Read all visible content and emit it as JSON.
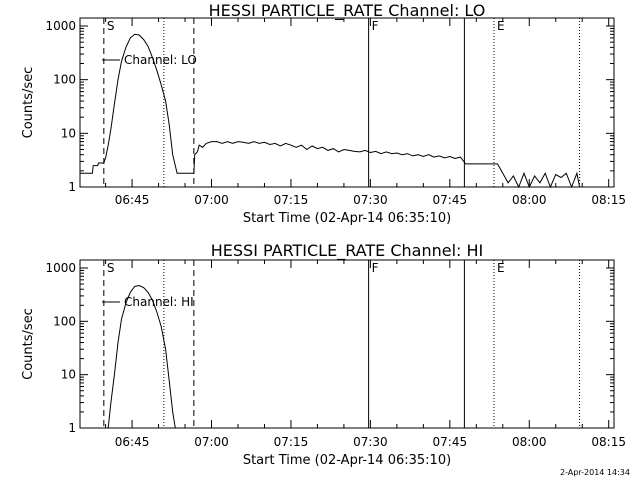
{
  "chart_data": [
    {
      "type": "line",
      "title": "HESSI PARTICLE_RATE Channel: LO",
      "xlabel": "Start Time (02-Apr-14 06:35:10)",
      "ylabel": "Counts/sec",
      "yscale": "log",
      "ylim": [
        1,
        1000
      ],
      "xlim": [
        "06:35:10",
        "08:16:00"
      ],
      "x_ticks": [
        "06:45",
        "07:00",
        "07:15",
        "07:30",
        "07:45",
        "08:00",
        "08:15"
      ],
      "y_ticks": [
        "1",
        "10",
        "100",
        "1000"
      ],
      "legend": "Channel: LO",
      "markers": [
        {
          "label": "S",
          "time": "06:39:40",
          "style": "dashed"
        },
        {
          "label": "",
          "time": "06:51:00",
          "style": "dotted"
        },
        {
          "label": "",
          "time": "06:56:40",
          "style": "dashed"
        },
        {
          "label": "F",
          "time": "07:29:40",
          "style": "solid"
        },
        {
          "label": "",
          "time": "07:47:45",
          "style": "solid"
        },
        {
          "label": "E",
          "time": "07:53:20",
          "style": "dotted"
        },
        {
          "label": "",
          "time": "08:09:30",
          "style": "dotted"
        }
      ],
      "series": [
        {
          "x": [
            "06:35:10",
            "06:37:30",
            "06:37:40",
            "06:38:30",
            "06:38:40",
            "06:39:40",
            "06:40:00",
            "06:40:30",
            "06:41:00",
            "06:41:40",
            "06:42:20",
            "06:43:00",
            "06:43:50",
            "06:44:40",
            "06:45:30",
            "06:46:20",
            "06:47:10",
            "06:48:00",
            "06:48:50",
            "06:49:40",
            "06:50:30",
            "06:51:20",
            "06:52:00",
            "06:52:40",
            "06:53:30",
            "06:54:00",
            "06:56:40",
            "06:56:50",
            "06:57:20",
            "06:57:40",
            "06:58:20",
            "06:59:00",
            "07:00:00",
            "07:01:00",
            "07:02:00",
            "07:03:00",
            "07:04:00",
            "07:05:00",
            "07:06:00",
            "07:07:00",
            "07:08:00",
            "07:09:00",
            "07:10:00",
            "07:11:00",
            "07:12:00",
            "07:13:00",
            "07:14:00",
            "07:15:00",
            "07:16:00",
            "07:17:00",
            "07:18:00",
            "07:19:00",
            "07:20:00",
            "07:21:00",
            "07:22:00",
            "07:23:00",
            "07:24:00",
            "07:25:00",
            "07:26:00",
            "07:27:00",
            "07:28:00",
            "07:29:00",
            "07:30:00",
            "07:31:00",
            "07:32:00",
            "07:33:00",
            "07:34:00",
            "07:35:00",
            "07:36:00",
            "07:37:00",
            "07:38:00",
            "07:39:00",
            "07:40:00",
            "07:41:00",
            "07:42:00",
            "07:43:00",
            "07:44:00",
            "07:45:00",
            "07:46:00",
            "07:47:00",
            "07:48:00",
            "07:49:00",
            "07:50:00",
            "07:51:00",
            "07:52:00",
            "07:53:00",
            "07:54:00",
            "07:55:00",
            "07:56:00",
            "07:57:00",
            "07:58:00",
            "07:59:00",
            "08:00:00",
            "08:01:00",
            "08:02:00",
            "08:03:00",
            "08:04:00",
            "08:05:00",
            "08:06:00",
            "08:07:00",
            "08:08:00",
            "08:09:00",
            "08:09:30"
          ],
          "values": [
            1.8,
            1.8,
            2.5,
            2.5,
            2.8,
            2.8,
            3.5,
            6,
            12,
            35,
            100,
            220,
            400,
            600,
            700,
            680,
            560,
            420,
            260,
            150,
            80,
            40,
            15,
            4,
            1.8,
            1.8,
            1.8,
            4,
            4.5,
            6,
            5.5,
            6.5,
            7,
            7,
            6.5,
            7,
            6.5,
            7,
            6.8,
            6.5,
            7,
            6.5,
            6.8,
            6.2,
            6.5,
            5.8,
            6.5,
            6,
            5.5,
            6,
            5,
            5.8,
            5.2,
            5.5,
            4.8,
            5.2,
            4.5,
            5,
            4.8,
            4.6,
            4.5,
            4.8,
            4.4,
            4.6,
            4.2,
            4.5,
            4.2,
            4.3,
            4.0,
            4.2,
            3.8,
            4.0,
            3.7,
            4.0,
            3.6,
            3.8,
            3.5,
            3.7,
            3.4,
            3.6,
            2.7,
            2.7,
            2.7,
            2.7,
            2.7,
            2.7,
            2.7,
            1.8,
            1.2,
            1.6,
            1.0,
            1.8,
            1.0,
            1.6,
            1.2,
            1.8,
            1.0,
            1.7,
            1.5,
            1.8,
            1.0,
            1.8,
            1.0
          ]
        }
      ]
    },
    {
      "type": "line",
      "title": "HESSI PARTICLE_RATE Channel: HI",
      "xlabel": "Start Time (02-Apr-14 06:35:10)",
      "ylabel": "Counts/sec",
      "yscale": "log",
      "ylim": [
        1,
        1000
      ],
      "xlim": [
        "06:35:10",
        "08:16:00"
      ],
      "x_ticks": [
        "06:45",
        "07:00",
        "07:15",
        "07:30",
        "07:45",
        "08:00",
        "08:15"
      ],
      "y_ticks": [
        "1",
        "10",
        "100",
        "1000"
      ],
      "legend": "Channel: HI",
      "markers": [
        {
          "label": "S",
          "time": "06:39:40",
          "style": "dashed"
        },
        {
          "label": "",
          "time": "06:51:00",
          "style": "dotted"
        },
        {
          "label": "",
          "time": "06:56:40",
          "style": "dashed"
        },
        {
          "label": "F",
          "time": "07:29:40",
          "style": "solid"
        },
        {
          "label": "",
          "time": "07:47:45",
          "style": "solid"
        },
        {
          "label": "E",
          "time": "07:53:20",
          "style": "dotted"
        },
        {
          "label": "",
          "time": "08:09:30",
          "style": "dotted"
        }
      ],
      "series": [
        {
          "x": [
            "06:40:30",
            "06:41:00",
            "06:41:40",
            "06:42:20",
            "06:43:00",
            "06:43:50",
            "06:44:40",
            "06:45:30",
            "06:46:20",
            "06:47:10",
            "06:48:00",
            "06:48:50",
            "06:49:40",
            "06:50:30",
            "06:51:20",
            "06:52:00",
            "06:52:40",
            "06:53:10"
          ],
          "values": [
            1.0,
            3,
            10,
            40,
            110,
            220,
            350,
            450,
            470,
            430,
            350,
            250,
            150,
            80,
            30,
            8,
            2,
            1.0
          ]
        }
      ]
    }
  ],
  "footer": {
    "stamp": "2-Apr-2014 14:34"
  }
}
